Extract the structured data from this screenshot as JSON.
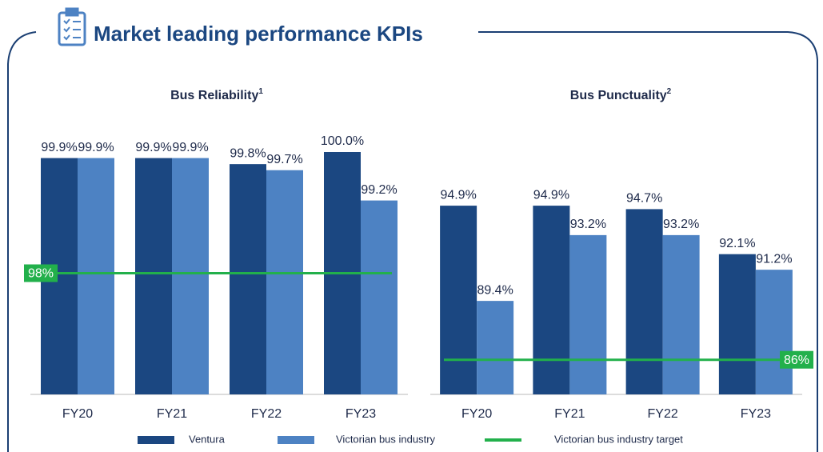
{
  "title": "Market leading performance KPIs",
  "chart_data": [
    {
      "type": "bar",
      "title": "Bus Reliability",
      "title_note": "1",
      "categories": [
        "FY20",
        "FY21",
        "FY22",
        "FY23"
      ],
      "series": [
        {
          "name": "Ventura",
          "color": "#1b4781",
          "values": [
            99.9,
            99.9,
            99.8,
            100.0
          ],
          "value_labels": [
            "99.9%",
            "99.9%",
            "99.8%",
            "100.0%"
          ]
        },
        {
          "name": "Victorian bus industry",
          "color": "#4d82c3",
          "values": [
            99.9,
            99.9,
            99.7,
            99.2
          ],
          "value_labels": [
            "99.9%",
            "99.9%",
            "99.7%",
            "99.2%"
          ]
        }
      ],
      "target": {
        "name": "Victorian bus industry target",
        "color": "#22b04b",
        "value": 98,
        "label": "98%"
      },
      "ylim": [
        96,
        100
      ]
    },
    {
      "type": "bar",
      "title": "Bus Punctuality",
      "title_note": "2",
      "categories": [
        "FY20",
        "FY21",
        "FY22",
        "FY23"
      ],
      "series": [
        {
          "color": "#1b4781",
          "values": [
            94.9,
            94.9,
            94.7,
            92.1
          ],
          "value_labels": [
            "94.9%",
            "94.9%",
            "94.7%",
            "92.1%"
          ]
        },
        {
          "color": "#4d82c3",
          "values": [
            89.4,
            93.2,
            93.2,
            91.2
          ],
          "value_labels": [
            "89.4%",
            "93.2%",
            "93.2%",
            "91.2%"
          ]
        }
      ],
      "target": {
        "color": "#22b04b",
        "value": 86,
        "label": "86%"
      },
      "ylim": [
        84,
        98
      ]
    }
  ]
}
